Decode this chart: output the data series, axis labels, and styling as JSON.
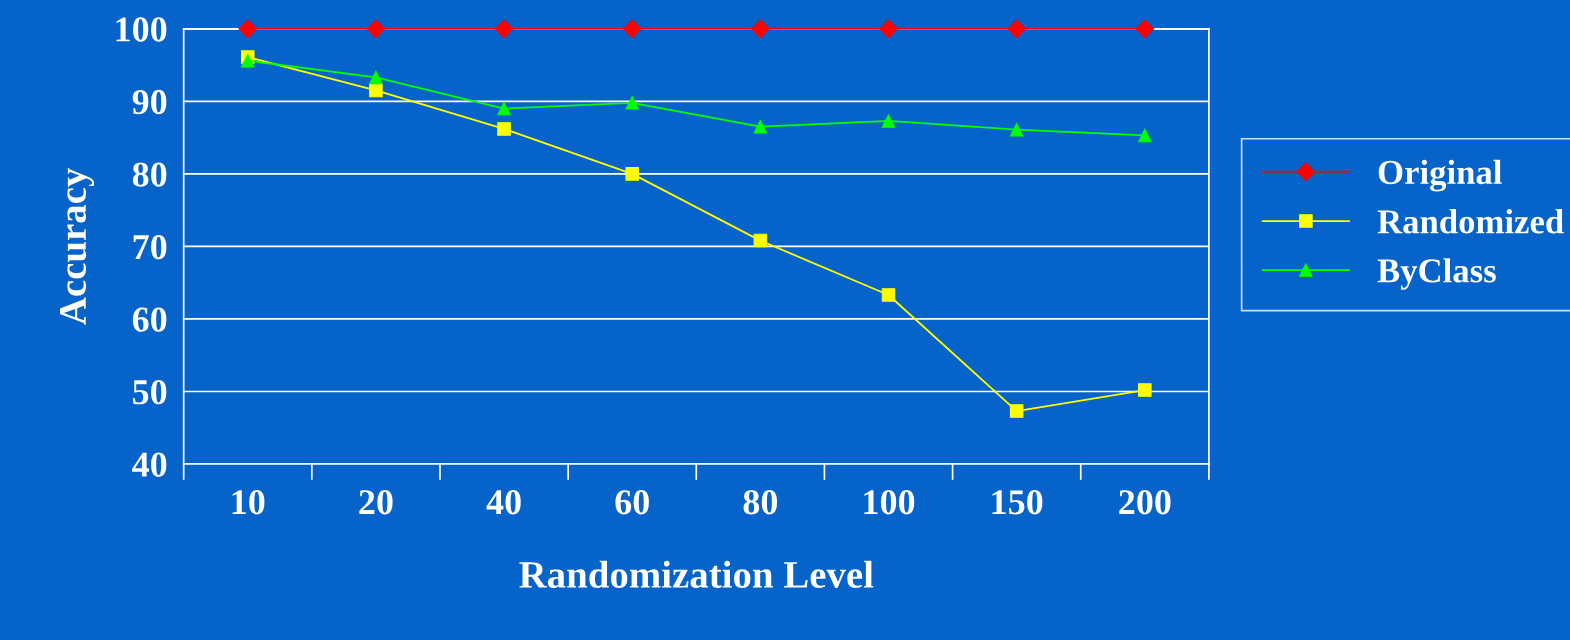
{
  "chart_data": {
    "type": "line",
    "xlabel": "Randomization Level",
    "ylabel": "Accuracy",
    "categories": [
      "10",
      "20",
      "40",
      "60",
      "80",
      "100",
      "150",
      "200"
    ],
    "series": [
      {
        "name": "Original",
        "color": "#ff0000",
        "marker": "diamond",
        "values": [
          100,
          100,
          100,
          100,
          100,
          100,
          100,
          100
        ]
      },
      {
        "name": "Randomized",
        "color": "#ffff00",
        "marker": "square",
        "values": [
          96.1,
          91.5,
          86.2,
          80.0,
          70.8,
          63.3,
          47.3,
          50.2
        ]
      },
      {
        "name": "ByClass",
        "color": "#00ff00",
        "marker": "triangle",
        "values": [
          95.6,
          93.3,
          89.0,
          89.8,
          86.5,
          87.3,
          86.1,
          85.3
        ]
      }
    ],
    "ylim": [
      40,
      100
    ],
    "yticks": [
      40,
      50,
      60,
      70,
      80,
      90,
      100
    ],
    "grid": "y",
    "legend": "right"
  }
}
